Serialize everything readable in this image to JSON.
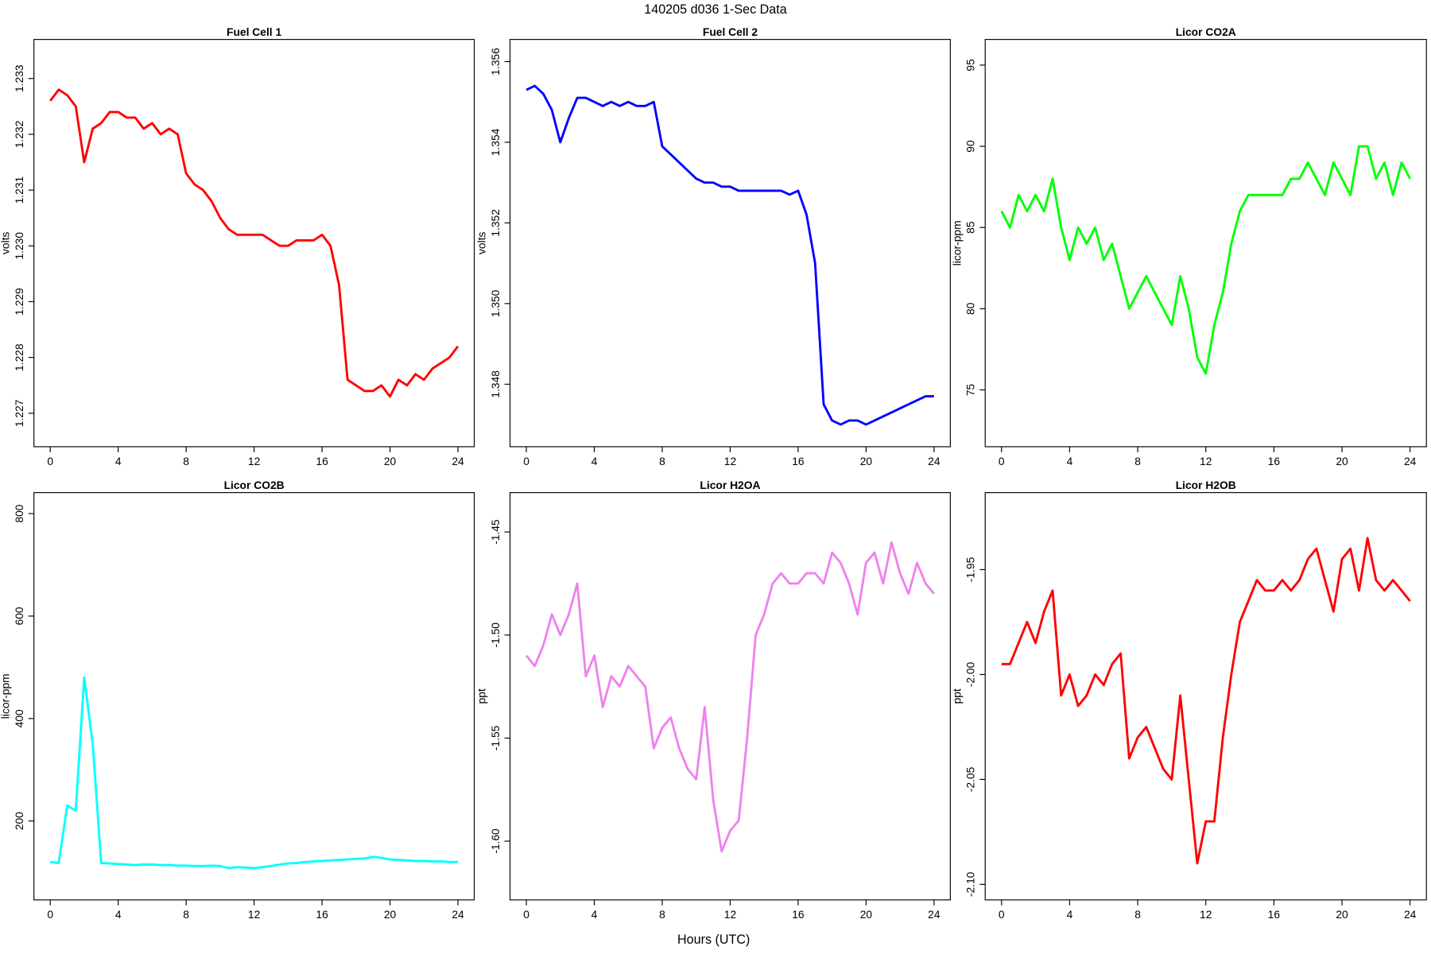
{
  "title": "140205   d036   1-Sec Data",
  "xlabel": "Hours (UTC)",
  "chart_data": [
    {
      "type": "line",
      "title": "Fuel Cell 1",
      "ylabel": "volts",
      "color": "#ff0000",
      "x": [
        0,
        0.5,
        1,
        1.5,
        2,
        2.5,
        3,
        3.5,
        4,
        4.5,
        5,
        5.5,
        6,
        6.5,
        7,
        7.5,
        8,
        8.5,
        9,
        9.5,
        10,
        10.5,
        11,
        11.5,
        12,
        12.5,
        13,
        13.5,
        14,
        14.5,
        15,
        15.5,
        16,
        16.5,
        17,
        17.5,
        18,
        18.5,
        19,
        19.5,
        20,
        20.5,
        21,
        21.5,
        22,
        22.5,
        23,
        23.5,
        24
      ],
      "values": [
        1.2326,
        1.2328,
        1.2327,
        1.2325,
        1.2315,
        1.2321,
        1.2322,
        1.2324,
        1.2324,
        1.2323,
        1.2323,
        1.2321,
        1.2322,
        1.232,
        1.2321,
        1.232,
        1.2313,
        1.2311,
        1.231,
        1.2308,
        1.2305,
        1.2303,
        1.2302,
        1.2302,
        1.2302,
        1.2302,
        1.2301,
        1.23,
        1.23,
        1.2301,
        1.2301,
        1.2301,
        1.2302,
        1.23,
        1.2293,
        1.2276,
        1.2275,
        1.2274,
        1.2274,
        1.2275,
        1.2273,
        1.2276,
        1.2275,
        1.2277,
        1.2276,
        1.2278,
        1.2279,
        1.228,
        1.2282
      ],
      "xlim": [
        -0.96,
        24.96
      ],
      "xticks": [
        0,
        4,
        8,
        12,
        16,
        20,
        24
      ],
      "ylim": [
        1.2264,
        1.2337
      ],
      "yticks": [
        1.227,
        1.228,
        1.229,
        {
          "value": 1.23,
          "label": "1.230"
        },
        1.231,
        1.232,
        1.233
      ]
    },
    {
      "type": "line",
      "title": "Fuel Cell 2",
      "ylabel": "volts",
      "color": "#0000ff",
      "x": [
        0,
        0.5,
        1,
        1.5,
        2,
        2.5,
        3,
        3.5,
        4,
        4.5,
        5,
        5.5,
        6,
        6.5,
        7,
        7.5,
        8,
        8.5,
        9,
        9.5,
        10,
        10.5,
        11,
        11.5,
        12,
        12.5,
        13,
        13.5,
        14,
        14.5,
        15,
        15.5,
        16,
        16.5,
        17,
        17.5,
        18,
        18.5,
        19,
        19.5,
        20,
        20.5,
        21,
        21.5,
        22,
        22.5,
        23,
        23.5,
        24
      ],
      "values": [
        1.3553,
        1.3554,
        1.3552,
        1.3548,
        1.354,
        1.3546,
        1.3551,
        1.3551,
        1.355,
        1.3549,
        1.355,
        1.3549,
        1.355,
        1.3549,
        1.3549,
        1.355,
        1.3539,
        1.3537,
        1.3535,
        1.3533,
        1.3531,
        1.353,
        1.353,
        1.3529,
        1.3529,
        1.3528,
        1.3528,
        1.3528,
        1.3528,
        1.3528,
        1.3528,
        1.3527,
        1.3528,
        1.3522,
        1.351,
        1.3475,
        1.3471,
        1.347,
        1.3471,
        1.3471,
        1.347,
        1.3471,
        1.3472,
        1.3473,
        1.3474,
        1.3475,
        1.3476,
        1.3477,
        1.3477
      ],
      "xlim": [
        -0.96,
        24.96
      ],
      "xticks": [
        0,
        4,
        8,
        12,
        16,
        20,
        24
      ],
      "ylim": [
        1.34645,
        1.35655
      ],
      "yticks": [
        1.348,
        {
          "value": 1.35,
          "label": "1.350"
        },
        1.352,
        1.354,
        1.356
      ]
    },
    {
      "type": "line",
      "title": "Licor CO2A",
      "ylabel": "licor-ppm",
      "color": "#00ff00",
      "x": [
        0,
        0.5,
        1,
        1.5,
        2,
        2.5,
        3,
        3.5,
        4,
        4.5,
        5,
        5.5,
        6,
        6.5,
        7,
        7.5,
        8,
        8.5,
        9,
        9.5,
        10,
        10.5,
        11,
        11.5,
        12,
        12.5,
        13,
        13.5,
        14,
        14.5,
        15,
        15.5,
        16,
        16.5,
        17,
        17.5,
        18,
        18.5,
        19,
        19.5,
        20,
        20.5,
        21,
        21.5,
        22,
        22.5,
        23,
        23.5,
        24
      ],
      "values": [
        86,
        85,
        87,
        86,
        87,
        86,
        88,
        85,
        83,
        85,
        84,
        85,
        83,
        84,
        82,
        80,
        81,
        82,
        81,
        80,
        79,
        82,
        80,
        77,
        76,
        79,
        81,
        84,
        86,
        87,
        87,
        87,
        87,
        87,
        88,
        88,
        89,
        88,
        87,
        89,
        88,
        87,
        90,
        90,
        88,
        89,
        87,
        89,
        88
      ],
      "xlim": [
        -0.96,
        24.96
      ],
      "xticks": [
        0,
        4,
        8,
        12,
        16,
        20,
        24
      ],
      "ylim": [
        71.5,
        96.58
      ],
      "yticks": [
        75,
        80,
        85,
        90,
        95
      ]
    },
    {
      "type": "line",
      "title": "Licor CO2B",
      "ylabel": "licor-ppm",
      "color": "#00ffff",
      "x": [
        0,
        0.5,
        1,
        1.5,
        2,
        2.5,
        3,
        3.5,
        4,
        4.5,
        5,
        5.5,
        6,
        6.5,
        7,
        7.5,
        8,
        8.5,
        9,
        9.5,
        10,
        10.5,
        11,
        11.5,
        12,
        12.5,
        13,
        13.5,
        14,
        14.5,
        15,
        15.5,
        16,
        16.5,
        17,
        17.5,
        18,
        18.5,
        19,
        19.5,
        20,
        20.5,
        21,
        21.5,
        22,
        22.5,
        23,
        23.5,
        24
      ],
      "values": [
        120,
        118,
        230,
        220,
        480,
        350,
        118,
        117,
        116,
        115,
        114,
        115,
        115,
        114,
        114,
        113,
        113,
        112,
        112,
        113,
        112,
        108,
        110,
        109,
        108,
        110,
        112,
        115,
        117,
        118,
        120,
        121,
        122,
        123,
        124,
        125,
        126,
        127,
        130,
        128,
        125,
        124,
        123,
        122,
        122,
        121,
        121,
        120,
        120
      ],
      "xlim": [
        -0.96,
        24.96
      ],
      "xticks": [
        0,
        4,
        8,
        12,
        16,
        20,
        24
      ],
      "ylim": [
        46,
        841
      ],
      "yticks": [
        200,
        400,
        600,
        800
      ]
    },
    {
      "type": "line",
      "title": "Licor H2OA",
      "ylabel": "ppt",
      "color": "#ee82ee",
      "x": [
        0,
        0.5,
        1,
        1.5,
        2,
        2.5,
        3,
        3.5,
        4,
        4.5,
        5,
        5.5,
        6,
        6.5,
        7,
        7.5,
        8,
        8.5,
        9,
        9.5,
        10,
        10.5,
        11,
        11.5,
        12,
        12.5,
        13,
        13.5,
        14,
        14.5,
        15,
        15.5,
        16,
        16.5,
        17,
        17.5,
        18,
        18.5,
        19,
        19.5,
        20,
        20.5,
        21,
        21.5,
        22,
        22.5,
        23,
        23.5,
        24
      ],
      "values": [
        -1.51,
        -1.515,
        -1.505,
        -1.49,
        -1.5,
        -1.49,
        -1.475,
        -1.52,
        -1.51,
        -1.535,
        -1.52,
        -1.525,
        -1.515,
        -1.52,
        -1.525,
        -1.555,
        -1.545,
        -1.54,
        -1.555,
        -1.565,
        -1.57,
        -1.535,
        -1.58,
        -1.605,
        -1.595,
        -1.59,
        -1.55,
        -1.5,
        -1.49,
        -1.475,
        -1.47,
        -1.475,
        -1.475,
        -1.47,
        -1.47,
        -1.475,
        -1.46,
        -1.465,
        -1.475,
        -1.49,
        -1.465,
        -1.46,
        -1.475,
        -1.455,
        -1.47,
        -1.48,
        -1.465,
        -1.475,
        -1.48
      ],
      "xlim": [
        -0.96,
        24.96
      ],
      "xticks": [
        0,
        4,
        8,
        12,
        16,
        20,
        24
      ],
      "ylim": [
        -1.6285,
        -1.4309
      ],
      "yticks": [
        {
          "value": -1.6,
          "label": "-1.60"
        },
        -1.55,
        {
          "value": -1.5,
          "label": "-1.50"
        },
        -1.45
      ]
    },
    {
      "type": "line",
      "title": "Licor H2OB",
      "ylabel": "ppt",
      "color": "#ff0000",
      "x": [
        0,
        0.5,
        1,
        1.5,
        2,
        2.5,
        3,
        3.5,
        4,
        4.5,
        5,
        5.5,
        6,
        6.5,
        7,
        7.5,
        8,
        8.5,
        9,
        9.5,
        10,
        10.5,
        11,
        11.5,
        12,
        12.5,
        13,
        13.5,
        14,
        14.5,
        15,
        15.5,
        16,
        16.5,
        17,
        17.5,
        18,
        18.5,
        19,
        19.5,
        20,
        20.5,
        21,
        21.5,
        22,
        22.5,
        23,
        23.5,
        24
      ],
      "values": [
        -1.995,
        -1.995,
        -1.985,
        -1.975,
        -1.985,
        -1.97,
        -1.96,
        -2.01,
        -2,
        -2.015,
        -2.01,
        -2,
        -2.005,
        -1.995,
        -1.99,
        -2.04,
        -2.03,
        -2.025,
        -2.035,
        -2.045,
        -2.05,
        -2.01,
        -2.05,
        -2.09,
        -2.07,
        -2.07,
        -2.03,
        -2,
        -1.975,
        -1.965,
        -1.955,
        -1.96,
        -1.96,
        -1.955,
        -1.96,
        -1.955,
        -1.945,
        -1.94,
        -1.955,
        -1.97,
        -1.945,
        -1.94,
        -1.96,
        -1.935,
        -1.955,
        -1.96,
        -1.955,
        -1.96,
        -1.965
      ],
      "xlim": [
        -0.96,
        24.96
      ],
      "xticks": [
        0,
        4,
        8,
        12,
        16,
        20,
        24
      ],
      "ylim": [
        -2.1074,
        -1.9133
      ],
      "yticks": [
        {
          "value": -2.1,
          "label": "-2.10"
        },
        -2.05,
        {
          "value": -2,
          "label": "-2.00"
        },
        -1.95
      ]
    }
  ]
}
